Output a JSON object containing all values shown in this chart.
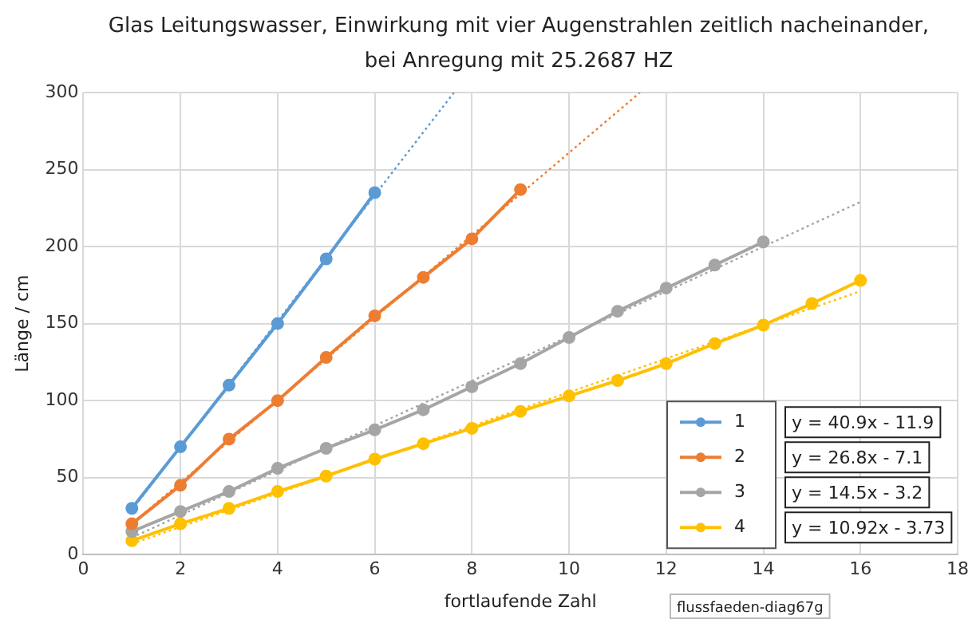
{
  "chart_data": {
    "type": "line",
    "title": "Glas Leitungswasser, Einwirkung mit vier Augenstrahlen zeitlich nacheinander,  bei Anregung mit 25.2687 HZ",
    "xlabel": "fortlaufende Zahl",
    "ylabel": "Länge / cm",
    "xlim": [
      0,
      18
    ],
    "xticks": [
      0,
      2,
      4,
      6,
      8,
      10,
      12,
      14,
      16,
      18
    ],
    "ylim": [
      0,
      300
    ],
    "yticks": [
      0,
      50,
      100,
      150,
      200,
      250,
      300
    ],
    "grid": true,
    "legend": "bottom right",
    "marker": "circle",
    "series": [
      {
        "name": "1",
        "color": "#5b9bd5",
        "x": [
          1,
          2,
          3,
          4,
          5,
          6
        ],
        "values": [
          30,
          70,
          110,
          150,
          192,
          235
        ]
      },
      {
        "name": "2",
        "color": "#ed7d31",
        "x": [
          1,
          2,
          3,
          4,
          5,
          6,
          7,
          8,
          9
        ],
        "values": [
          20,
          45,
          75,
          100,
          128,
          155,
          180,
          205,
          237
        ]
      },
      {
        "name": "3",
        "color": "#a5a5a5",
        "x": [
          1,
          2,
          3,
          4,
          5,
          6,
          7,
          8,
          9,
          10,
          11,
          12,
          13,
          14
        ],
        "values": [
          15,
          28,
          41,
          56,
          69,
          81,
          94,
          109,
          124,
          141,
          158,
          173,
          188,
          203
        ]
      },
      {
        "name": "4",
        "color": "#ffc000",
        "x": [
          1,
          2,
          3,
          4,
          5,
          6,
          7,
          8,
          9,
          10,
          11,
          12,
          13,
          14,
          15,
          16
        ],
        "values": [
          9,
          20,
          30,
          41,
          51,
          62,
          72,
          82,
          93,
          103,
          113,
          124,
          137,
          149,
          163,
          178
        ]
      },
      {
        "type": "line",
        "color": "#5b9bd5",
        "line_style": "dotted",
        "marker": "none",
        "x": [
          1,
          7.63
        ],
        "values": [
          29,
          300
        ]
      },
      {
        "type": "line",
        "color": "#ed7d31",
        "line_style": "dotted",
        "marker": "none",
        "x": [
          1,
          11.46
        ],
        "values": [
          20,
          300
        ]
      },
      {
        "type": "line",
        "color": "#a5a5a5",
        "line_style": "dotted",
        "marker": "none",
        "x": [
          1,
          16
        ],
        "values": [
          11,
          229
        ]
      },
      {
        "type": "line",
        "color": "#ffc000",
        "line_style": "dotted",
        "marker": "none",
        "x": [
          1,
          16
        ],
        "values": [
          7,
          171
        ]
      }
    ],
    "annotations": [
      "y = 40.9x - 11.9",
      "y = 26.8x - 7.1",
      "y = 14.5x - 3.2",
      "y = 10.92x - 3.73",
      "flussfaeden-diag67g"
    ]
  }
}
